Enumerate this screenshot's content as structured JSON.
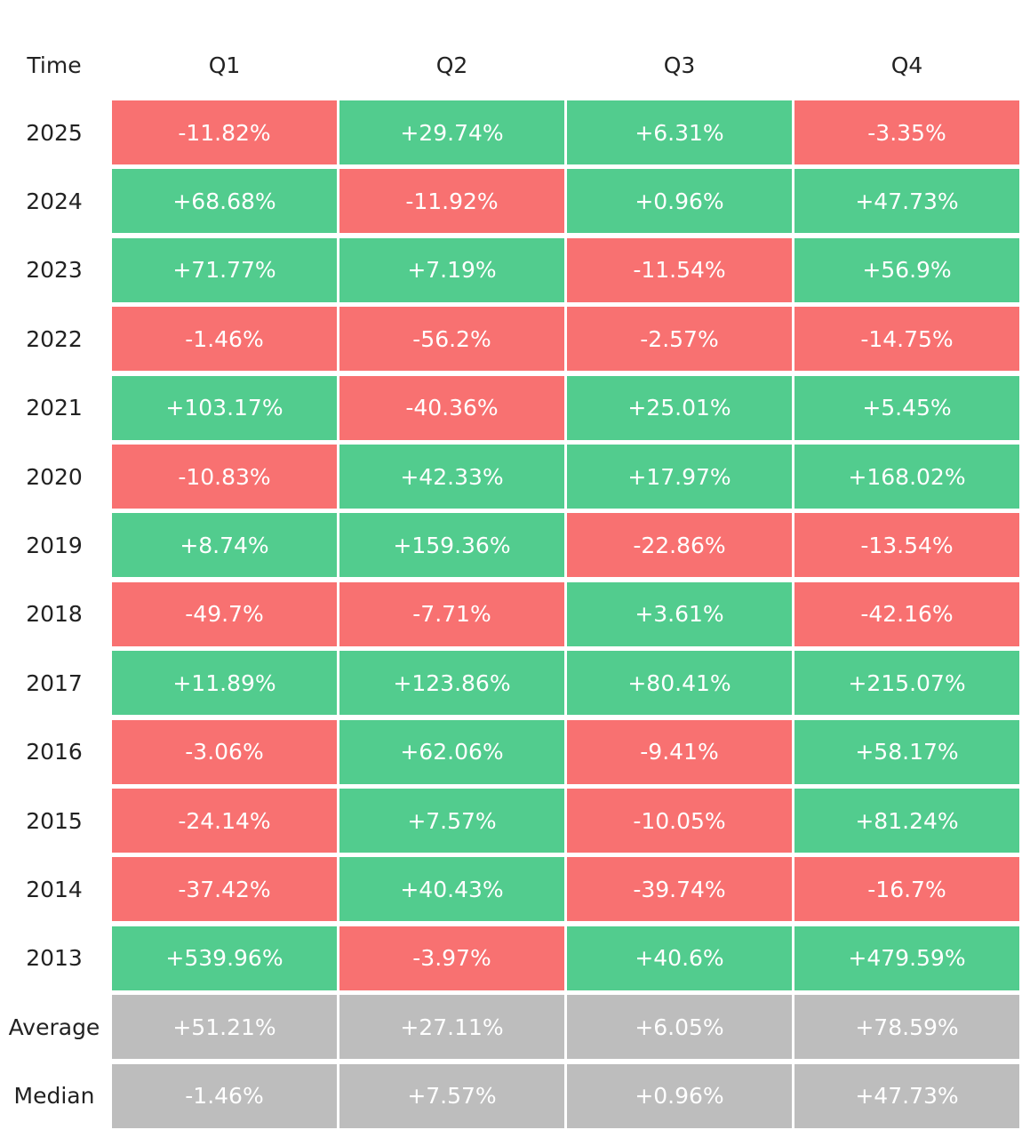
{
  "table": {
    "header": [
      "Time",
      "Q1",
      "Q2",
      "Q3",
      "Q4"
    ],
    "rows": [
      [
        "2025",
        "-11.82%",
        "+29.74%",
        "+6.31%",
        "-3.35%"
      ],
      [
        "2024",
        "+68.68%",
        "-11.92%",
        "+0.96%",
        "+47.73%"
      ],
      [
        "2023",
        "+71.77%",
        "+7.19%",
        "-11.54%",
        "+56.9%"
      ],
      [
        "2022",
        "-1.46%",
        "-56.2%",
        "-2.57%",
        "-14.75%"
      ],
      [
        "2021",
        "+103.17%",
        "-40.36%",
        "+25.01%",
        "+5.45%"
      ],
      [
        "2020",
        "-10.83%",
        "+42.33%",
        "+17.97%",
        "+168.02%"
      ],
      [
        "2019",
        "+8.74%",
        "+159.36%",
        "-22.86%",
        "-13.54%"
      ],
      [
        "2018",
        "-49.7%",
        "-7.71%",
        "+3.61%",
        "-42.16%"
      ],
      [
        "2017",
        "+11.89%",
        "+123.86%",
        "+80.41%",
        "+215.07%"
      ],
      [
        "2016",
        "-3.06%",
        "+62.06%",
        "-9.41%",
        "+58.17%"
      ],
      [
        "2015",
        "-24.14%",
        "+7.57%",
        "-10.05%",
        "+81.24%"
      ],
      [
        "2014",
        "-37.42%",
        "+40.43%",
        "-39.74%",
        "-16.7%"
      ],
      [
        "2013",
        "+539.96%",
        "-3.97%",
        "+40.6%",
        "+479.59%"
      ]
    ],
    "summary_rows": [
      [
        "Average",
        "+51.21%",
        "+27.11%",
        "+6.05%",
        "+78.59%"
      ],
      [
        "Median",
        "-1.46%",
        "+7.57%",
        "+0.96%",
        "+47.73%"
      ]
    ],
    "colors": {
      "positive": "#52cc8e",
      "negative": "#f87171",
      "summary": "#bdbdbd"
    }
  }
}
